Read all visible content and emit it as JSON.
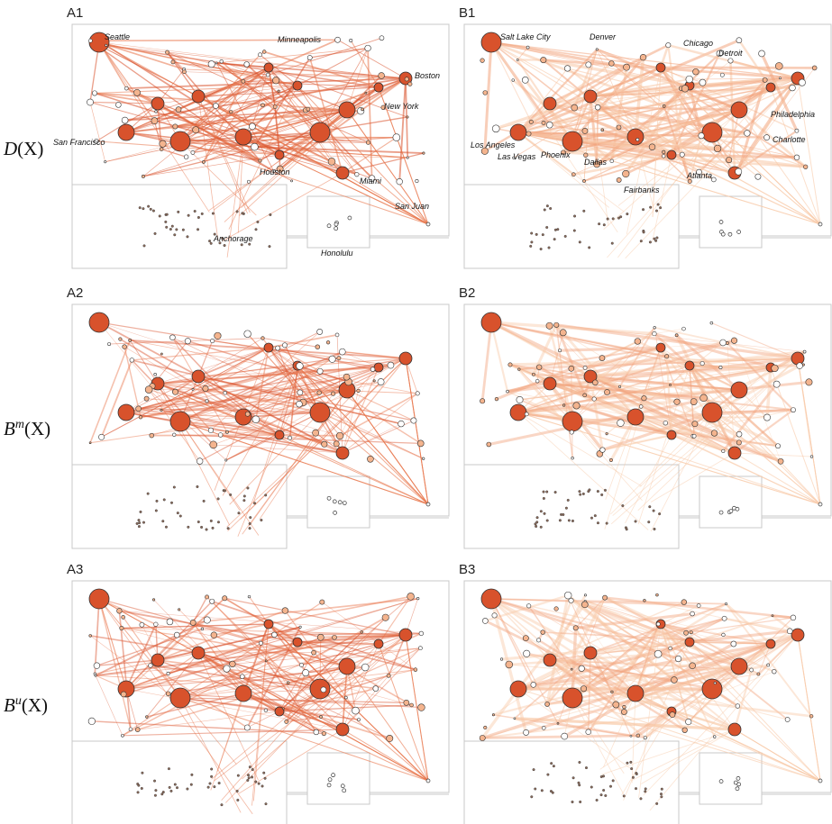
{
  "panels": [
    {
      "label": "A1",
      "cities": [
        "Seattle",
        "Minneapolis",
        "Boston",
        "San Francisco",
        "New York",
        "Houston",
        "Miami",
        "San Juan",
        "Anchorage",
        "Honolulu"
      ]
    },
    {
      "label": "B1",
      "cities": [
        "Salt Lake City",
        "Denver",
        "Chicago",
        "Detroit",
        "Philadelphia",
        "Charlotte",
        "Los Angeles",
        "Las Vegas",
        "Phoenix",
        "Dallas",
        "Atlanta",
        "Fairbanks"
      ]
    },
    {
      "label": "A2",
      "cities": []
    },
    {
      "label": "B2",
      "cities": []
    },
    {
      "label": "A3",
      "cities": []
    },
    {
      "label": "B3",
      "cities": []
    }
  ],
  "row_labels": [
    {
      "func": "D",
      "sup": "",
      "arg": "(X)"
    },
    {
      "func": "B",
      "sup": "m",
      "arg": "(X)"
    },
    {
      "func": "B",
      "sup": "u",
      "arg": "(X)"
    }
  ]
}
